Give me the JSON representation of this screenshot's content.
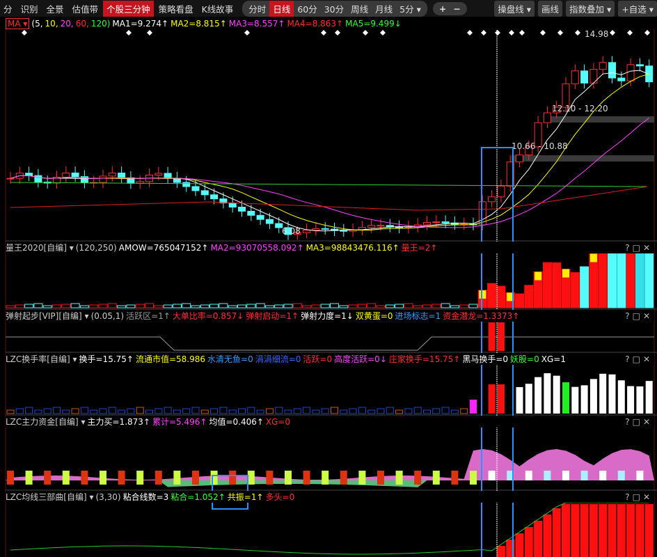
{
  "toolbar": {
    "left": [
      "分",
      "识别",
      "全景",
      "估值带",
      "个股三分钟",
      "策略看盘",
      "K线故事"
    ],
    "left_active": 4,
    "periods": [
      "分时",
      "日线",
      "60分",
      "30分",
      "周线",
      "月线",
      "5分 ▾"
    ],
    "periods_active": 1,
    "zoom": [
      "+",
      "−"
    ],
    "right": [
      "操盘线 ▾",
      "画线",
      "指数叠加 ▾",
      "+自选 ▾"
    ]
  },
  "main": {
    "indicator": "MA ▾",
    "items": [
      {
        "text": "(5,",
        "color": "#ffffff"
      },
      {
        "text": "10,",
        "color": "#ffff00"
      },
      {
        "text": "20,",
        "color": "#ff44ff"
      },
      {
        "text": "60,",
        "color": "#ff3030"
      },
      {
        "text": "120)",
        "color": "#33ff33"
      },
      {
        "text": "MA1=9.274↑",
        "color": "#ffffff"
      },
      {
        "text": "MA2=8.815↑",
        "color": "#ffff00"
      },
      {
        "text": "MA3=8.557↑",
        "color": "#ff44ff"
      },
      {
        "text": "MA4=8.863↑",
        "color": "#ff3030"
      },
      {
        "text": "MA5=9.499↓",
        "color": "#33ff33"
      }
    ],
    "price_labels": [
      "14.98",
      "12.10 - 12.20",
      "10.66 - 10.88",
      "6.08"
    ]
  },
  "panel_icons": [
    "?",
    "□",
    "✕"
  ],
  "panels": [
    {
      "name": "量王2020[自编] ▾",
      "items": [
        {
          "text": "(120,250)",
          "color": "#cccccc"
        },
        {
          "text": "AMOW=765047152↑",
          "color": "#ffffff"
        },
        {
          "text": "MA2=93070558.092↑",
          "color": "#ff44ff"
        },
        {
          "text": "MA3=98843476.116↑",
          "color": "#ffff00"
        },
        {
          "text": "量王=2↑",
          "color": "#ff3030"
        }
      ]
    },
    {
      "name": "弹射起步[VIP][自编] ▾",
      "items": [
        {
          "text": "(0.05,1)",
          "color": "#cccccc"
        },
        {
          "text": "活跃区=1↑",
          "color": "#999999"
        },
        {
          "text": "大单比率=0.857↓",
          "color": "#ff3030"
        },
        {
          "text": "弹射启动=1↑",
          "color": "#ff3030"
        },
        {
          "text": "弹射力度=1↓",
          "color": "#ffffff"
        },
        {
          "text": "双黄蛋=0",
          "color": "#ffff00"
        },
        {
          "text": "进场标志=1",
          "color": "#3399ff"
        },
        {
          "text": "资金潜龙=1.3373↑",
          "color": "#ff3030"
        }
      ]
    },
    {
      "name": "LZC换手率[自编] ▾",
      "items": [
        {
          "text": "换手=15.75↑",
          "color": "#ffffff"
        },
        {
          "text": "流通市值=58.986",
          "color": "#ffff00"
        },
        {
          "text": "水清无鱼=0",
          "color": "#3399ff"
        },
        {
          "text": "涓涓细流=0",
          "color": "#3366ff"
        },
        {
          "text": "活跃=0",
          "color": "#ff3030"
        },
        {
          "text": "高度活跃=0↓",
          "color": "#ff44ff"
        },
        {
          "text": "庄家换手=15.75↑",
          "color": "#ff3030"
        },
        {
          "text": "黑马换手=0",
          "color": "#ffffff"
        },
        {
          "text": "妖股=0",
          "color": "#33ff33"
        },
        {
          "text": "XG=1",
          "color": "#ffffff"
        }
      ]
    },
    {
      "name": "LZC主力资金[自编] ▾",
      "items": [
        {
          "text": "主力买=1.873↑",
          "color": "#ffffff"
        },
        {
          "text": "累计=5.496↑",
          "color": "#ff44ff"
        },
        {
          "text": "均值=0.406↑",
          "color": "#ffffff"
        },
        {
          "text": "XG=0",
          "color": "#ff3030"
        }
      ]
    },
    {
      "name": "LZC均线三部曲[自编] ▾",
      "items": [
        {
          "text": "(3,30)",
          "color": "#cccccc"
        },
        {
          "text": "粘合线数=3",
          "color": "#ffffff"
        },
        {
          "text": "粘合=1.052↑",
          "color": "#33ff33"
        },
        {
          "text": "共振=1↑",
          "color": "#ffff00"
        },
        {
          "text": "多头=0",
          "color": "#ff3030"
        }
      ]
    }
  ]
}
